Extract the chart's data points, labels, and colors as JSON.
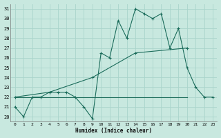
{
  "xlabel": "Humidex (Indice chaleur)",
  "bg_color": "#c8e8df",
  "line_color": "#1a6b5a",
  "grid_color": "#aad4cb",
  "xlim": [
    -0.5,
    23.5
  ],
  "ylim": [
    19.5,
    31.5
  ],
  "xticks": [
    0,
    1,
    2,
    3,
    4,
    5,
    6,
    7,
    8,
    9,
    10,
    11,
    12,
    13,
    14,
    15,
    16,
    17,
    18,
    19,
    20,
    21,
    22,
    23
  ],
  "yticks": [
    20,
    21,
    22,
    23,
    24,
    25,
    26,
    27,
    28,
    29,
    30,
    31
  ],
  "line1": {
    "x": [
      0,
      1,
      2,
      3,
      4,
      5,
      6,
      7,
      8,
      9,
      10,
      11,
      12,
      13,
      14,
      15,
      16,
      17,
      18,
      19,
      20,
      21,
      22,
      23
    ],
    "y": [
      21.0,
      20.0,
      22.0,
      22.0,
      22.5,
      22.5,
      22.5,
      22.0,
      21.0,
      19.8,
      26.5,
      26.0,
      29.8,
      28.0,
      31.0,
      30.5,
      30.0,
      30.5,
      27.0,
      29.0,
      25.0,
      23.0,
      22.0,
      22.0
    ]
  },
  "line2": {
    "x": [
      0,
      4,
      9,
      14,
      20
    ],
    "y": [
      22.0,
      22.5,
      24.0,
      26.5,
      27.0
    ]
  },
  "line3": {
    "x": [
      0,
      20
    ],
    "y": [
      22.0,
      22.0
    ]
  }
}
